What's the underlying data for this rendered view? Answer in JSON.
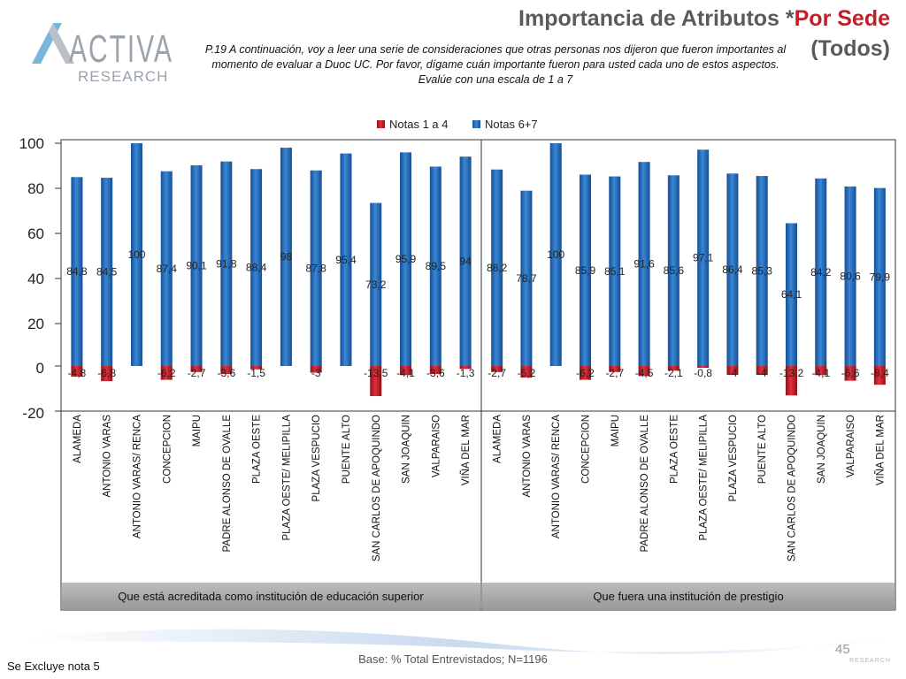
{
  "brand": {
    "logo_main": "ACTIVA",
    "logo_sub": "RESEARCH",
    "watermark": "RESEARCH"
  },
  "title": {
    "main": "Importancia de Atributos *",
    "accent": "Por Sede",
    "line2": "(Todos)"
  },
  "question": "P.19 A continuación, voy a leer una serie de consideraciones que otras personas nos dijeron que fueron importantes al momento de evaluar a Duoc UC. Por favor, dígame cuán importante fueron para usted cada uno de estos aspectos. Evalúe con una escala de 1 a 7",
  "footer": {
    "base": "Base: % Total Entrevistados; N=1196",
    "note": "Se Excluye nota 5",
    "page": "45"
  },
  "colors": {
    "series_low": "#c0202a",
    "series_high": "#1f67b8",
    "grey": "#a6a6a6",
    "title_accent": "#c0202a"
  },
  "chart_data": {
    "type": "bar",
    "legend": {
      "position": "top",
      "entries": [
        "Notas 1 a 4",
        "Notas 6+7"
      ]
    },
    "ylim": [
      -20,
      100
    ],
    "yticks": [
      "100",
      "80",
      "60",
      "40",
      "20",
      "0",
      "-20"
    ],
    "grid": false,
    "groups": [
      {
        "label": "Que está acreditada como institución de educación superior",
        "categories": [
          "ALAMEDA",
          "ANTONIO VARAS",
          "ANTONIO VARAS/ RENCA",
          "CONCEPCION",
          "MAIPU",
          "PADRE ALONSO DE OVALLE",
          "PLAZA OESTE",
          "PLAZA OESTE/ MELIPILLA",
          "PLAZA VESPUCIO",
          "PUENTE ALTO",
          "SAN CARLOS DE APOQUINDO",
          "SAN JOAQUIN",
          "VALPARAISO",
          "VIÑA DEL MAR"
        ],
        "series": [
          {
            "name": "Notas 1 a 4",
            "values": [
              -4.8,
              -6.8,
              0,
              -6.2,
              -2.7,
              -3.6,
              -1.5,
              0,
              -3,
              0,
              -13.5,
              -4.1,
              -3.6,
              -1.3
            ],
            "labels": [
              "-4,8",
              "-6,8",
              "",
              "-6,2",
              "-2,7",
              "-3,6",
              "-1,5",
              "",
              "-3",
              "",
              "-13,5",
              "-4,1",
              "-3,6",
              "-1,3"
            ]
          },
          {
            "name": "Notas 6+7",
            "values": [
              84.8,
              84.5,
              100,
              87.4,
              90.1,
              91.8,
              88.4,
              98,
              87.8,
              95.4,
              73.2,
              95.9,
              89.5,
              94
            ],
            "labels": [
              "84,8",
              "84,5",
              "100",
              "87,4",
              "90,1",
              "91,8",
              "88,4",
              "98",
              "87,8",
              "95,4",
              "73,2",
              "95,9",
              "89,5",
              "94"
            ]
          }
        ]
      },
      {
        "label": "Que fuera una institución de prestigio",
        "categories": [
          "ALAMEDA",
          "ANTONIO VARAS",
          "ANTONIO VARAS/ RENCA",
          "CONCEPCION",
          "MAIPU",
          "PADRE ALONSO DE OVALLE",
          "PLAZA OESTE",
          "PLAZA OESTE/ MELIPILLA",
          "PLAZA VESPUCIO",
          "PUENTE ALTO",
          "SAN CARLOS DE APOQUINDO",
          "SAN JOAQUIN",
          "VALPARAISO",
          "VIÑA DEL MAR"
        ],
        "series": [
          {
            "name": "Notas 1 a 4",
            "values": [
              -2.7,
              -5.2,
              0,
              -6.2,
              -2.7,
              -4.5,
              -2.1,
              -0.8,
              -4,
              -4,
              -13.2,
              -4.1,
              -6.6,
              -8.4
            ],
            "labels": [
              "-2,7",
              "-5,2",
              "",
              "-6,2",
              "-2,7",
              "-4,5",
              "-2,1",
              "-0,8",
              "-4",
              "-4",
              "-13,2",
              "-4,1",
              "-6,6",
              "-8,4"
            ]
          },
          {
            "name": "Notas 6+7",
            "values": [
              88.2,
              78.7,
              100,
              85.9,
              85.1,
              91.6,
              85.6,
              97.1,
              86.4,
              85.3,
              64.1,
              84.2,
              80.6,
              79.9
            ],
            "labels": [
              "88,2",
              "78,7",
              "100",
              "85,9",
              "85,1",
              "91,6",
              "85,6",
              "97,1",
              "86,4",
              "85,3",
              "64,1",
              "84,2",
              "80,6",
              "79,9"
            ]
          }
        ]
      }
    ]
  }
}
